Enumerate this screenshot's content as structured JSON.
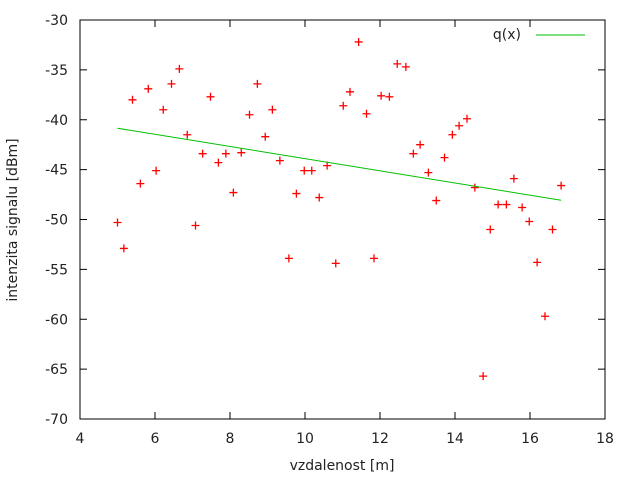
{
  "chart_data": {
    "type": "scatter",
    "title": "",
    "xlabel": "vzdalenost [m]",
    "ylabel": "intenzita signalu [dBm]",
    "xlim": [
      4,
      18
    ],
    "ylim": [
      -70,
      -30
    ],
    "xticks": [
      4,
      6,
      8,
      10,
      12,
      14,
      16,
      18
    ],
    "yticks": [
      -70,
      -65,
      -60,
      -55,
      -50,
      -45,
      -40,
      -35,
      -30
    ],
    "grid": false,
    "legend_position": "top-right",
    "series": [
      {
        "type": "scatter",
        "marker": "plus",
        "color": "#ff0000",
        "points": [
          [
            5.0,
            -50.3
          ],
          [
            5.17,
            -52.9
          ],
          [
            5.4,
            -38.0
          ],
          [
            5.61,
            -46.4
          ],
          [
            5.82,
            -36.9
          ],
          [
            6.03,
            -45.1
          ],
          [
            6.22,
            -39.0
          ],
          [
            6.44,
            -36.4
          ],
          [
            6.65,
            -34.9
          ],
          [
            6.86,
            -41.5
          ],
          [
            7.08,
            -50.6
          ],
          [
            7.27,
            -43.4
          ],
          [
            7.48,
            -37.7
          ],
          [
            7.69,
            -44.3
          ],
          [
            7.89,
            -43.4
          ],
          [
            8.09,
            -47.3
          ],
          [
            8.3,
            -43.3
          ],
          [
            8.52,
            -39.5
          ],
          [
            8.73,
            -36.4
          ],
          [
            8.94,
            -41.7
          ],
          [
            9.13,
            -39.0
          ],
          [
            9.33,
            -44.1
          ],
          [
            9.57,
            -53.9
          ],
          [
            9.77,
            -47.4
          ],
          [
            9.98,
            -45.1
          ],
          [
            10.18,
            -45.1
          ],
          [
            10.38,
            -47.8
          ],
          [
            10.59,
            -44.6
          ],
          [
            10.82,
            -54.4
          ],
          [
            11.02,
            -38.6
          ],
          [
            11.2,
            -37.2
          ],
          [
            11.43,
            -32.2
          ],
          [
            11.64,
            -39.4
          ],
          [
            11.84,
            -53.9
          ],
          [
            12.03,
            -37.6
          ],
          [
            12.25,
            -37.7
          ],
          [
            12.46,
            -34.4
          ],
          [
            12.69,
            -34.7
          ],
          [
            12.89,
            -43.4
          ],
          [
            13.07,
            -42.5
          ],
          [
            13.29,
            -45.3
          ],
          [
            13.5,
            -48.1
          ],
          [
            13.72,
            -43.8
          ],
          [
            13.93,
            -41.5
          ],
          [
            14.11,
            -40.6
          ],
          [
            14.32,
            -39.9
          ],
          [
            14.53,
            -46.8
          ],
          [
            14.75,
            -65.7
          ],
          [
            14.94,
            -51.0
          ],
          [
            15.15,
            -48.5
          ],
          [
            15.37,
            -48.5
          ],
          [
            15.57,
            -45.9
          ],
          [
            15.79,
            -48.8
          ],
          [
            15.98,
            -50.2
          ],
          [
            16.19,
            -54.3
          ],
          [
            16.4,
            -59.7
          ],
          [
            16.6,
            -51.0
          ],
          [
            16.83,
            -46.6
          ]
        ]
      },
      {
        "name": "q(x)",
        "type": "line",
        "color": "#00c000",
        "points": [
          [
            5.0,
            -40.85
          ],
          [
            16.83,
            -48.07
          ]
        ]
      }
    ]
  }
}
